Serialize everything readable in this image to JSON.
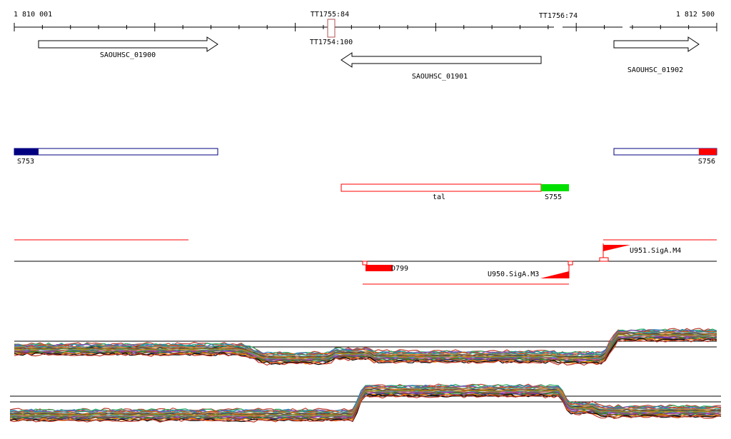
{
  "ruler": {
    "start_label": "1 810 001",
    "end_label": "1 812 500",
    "start_pos": 1810001,
    "end_pos": 1812500
  },
  "terminators": [
    {
      "id": "tt1755",
      "label": "TT1755:84",
      "pos": 1811127
    },
    {
      "id": "tt1754",
      "label": "TT1754:100",
      "pos": 1811127
    },
    {
      "id": "tt1756",
      "label": "TT1756:74",
      "pos": 1811958
    }
  ],
  "genes": [
    {
      "id": "gene-01900",
      "label": "SAOUHSC_01900",
      "start": 1810090,
      "end": 1810728,
      "strand": "+"
    },
    {
      "id": "gene-01901",
      "label": "SAOUHSC_01901",
      "start": 1811160,
      "end": 1811955,
      "strand": "-"
    },
    {
      "id": "gene-01902",
      "label": "SAOUHSC_01902",
      "start": 1812100,
      "end": 1812393,
      "strand": "+"
    }
  ],
  "segments": [
    {
      "id": "s753",
      "label": "S753",
      "start": 1810001,
      "end": 1810728,
      "colored_start": 1810001,
      "colored_end": 1810090,
      "color": "#000080",
      "border": "#000080"
    },
    {
      "id": "s756",
      "label": "S756",
      "start": 1812100,
      "end": 1812500,
      "colored_start": 1812434,
      "colored_end": 1812500,
      "color": "#ff0000",
      "border": "#000080"
    },
    {
      "id": "s755",
      "label": "S755",
      "start": 1811160,
      "end": 1811873,
      "colored_start": 1811873,
      "colored_end": 1811976,
      "color": "#00e000",
      "border": "#ff0000",
      "inner_label": "tal"
    }
  ],
  "features": {
    "d799_label": "D799",
    "u950_label": "U950.SigA.M3",
    "u951_label": "U951.SigA.M4"
  },
  "colors": {
    "feature_red": "#ff0000",
    "track_line": "#000000"
  }
}
